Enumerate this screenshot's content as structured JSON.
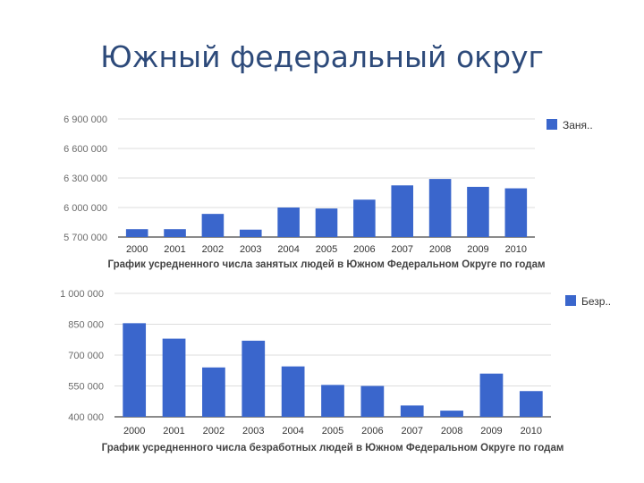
{
  "slide": {
    "title": "Южный федеральный округ"
  },
  "colors": {
    "bar": "#3a66cc",
    "grid": "#dddddd",
    "axis": "#444444"
  },
  "chart_data": [
    {
      "type": "bar",
      "caption": "График усредненного числа занятых людей в Южном Федеральном Округе по годам",
      "legend": {
        "label": "Заня..",
        "position": "top-right"
      },
      "categories": [
        "2000",
        "2001",
        "2002",
        "2003",
        "2004",
        "2005",
        "2006",
        "2007",
        "2008",
        "2009",
        "2010"
      ],
      "values": [
        5780000,
        5780000,
        5935000,
        5775000,
        6000000,
        5990000,
        6080000,
        6225000,
        6290000,
        6210000,
        6195000
      ],
      "ylim": [
        5700000,
        6900000
      ],
      "yticks": [
        {
          "value": 6900000,
          "label": "6 900 000"
        },
        {
          "value": 6600000,
          "label": "6 600 000"
        },
        {
          "value": 6300000,
          "label": "6 300 000"
        },
        {
          "value": 6000000,
          "label": "6 000 000"
        },
        {
          "value": 5700000,
          "label": "5 700 000"
        }
      ],
      "grid": true
    },
    {
      "type": "bar",
      "caption": "График усредненного числа безработных людей в Южном Федеральном Округе по годам",
      "legend": {
        "label": "Безр..",
        "position": "top-right"
      },
      "categories": [
        "2000",
        "2001",
        "2002",
        "2003",
        "2004",
        "2005",
        "2006",
        "2007",
        "2008",
        "2009",
        "2010"
      ],
      "values": [
        855000,
        780000,
        640000,
        770000,
        645000,
        555000,
        550000,
        455000,
        430000,
        610000,
        525000
      ],
      "ylim": [
        400000,
        1000000
      ],
      "yticks": [
        {
          "value": 1000000,
          "label": "1 000 000"
        },
        {
          "value": 850000,
          "label": "850 000"
        },
        {
          "value": 700000,
          "label": "700 000"
        },
        {
          "value": 550000,
          "label": "550 000"
        },
        {
          "value": 400000,
          "label": "400 000"
        }
      ],
      "grid": true
    }
  ]
}
